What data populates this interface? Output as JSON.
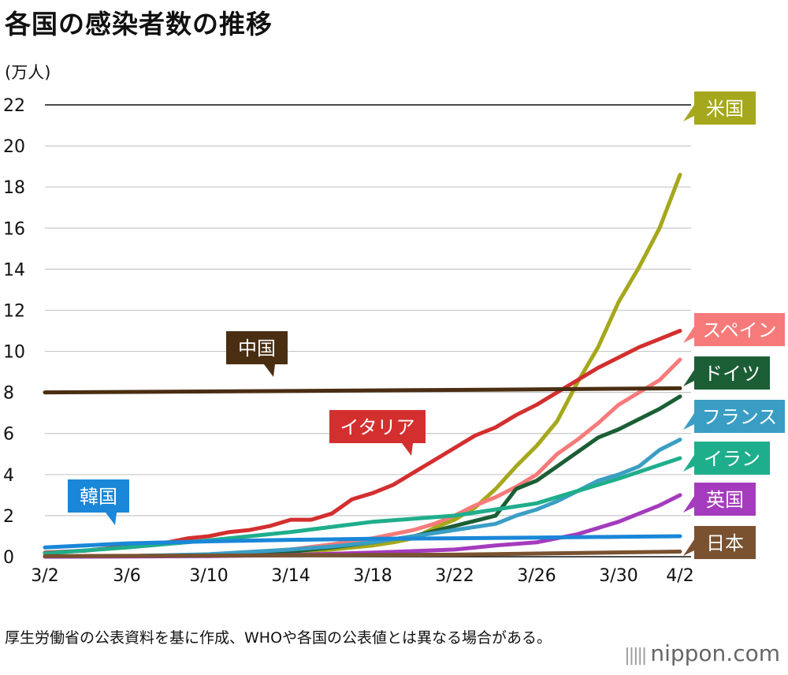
{
  "title": "各国の感染者数の推移",
  "unit": "(万人)",
  "footnote": "厚生労働省の公表資料を基に作成、WHOや各国の公表値とは異なる場合がある。",
  "logo": "nippon.com",
  "chart_data": {
    "type": "line",
    "x_tick_labels": [
      "3/2",
      "3/6",
      "3/10",
      "3/14",
      "3/18",
      "3/22",
      "3/26",
      "3/30",
      "4/2"
    ],
    "x_tick_days": [
      0,
      4,
      8,
      12,
      16,
      20,
      24,
      28,
      31
    ],
    "ylim": [
      0,
      22
    ],
    "y_ticks": [
      0,
      2,
      4,
      6,
      8,
      10,
      12,
      14,
      16,
      18,
      20,
      22
    ],
    "ylabel": "(万人)",
    "series": [
      {
        "name": "米国",
        "color": "#a5a81c",
        "label_color": "#a5a81c",
        "x": [
          0,
          4,
          8,
          12,
          14,
          16,
          17,
          18,
          19,
          20,
          21,
          22,
          23,
          24,
          25,
          26,
          27,
          28,
          29,
          30,
          31
        ],
        "values": [
          0.01,
          0.02,
          0.06,
          0.2,
          0.35,
          0.55,
          0.7,
          0.9,
          1.4,
          1.8,
          2.4,
          3.3,
          4.4,
          5.4,
          6.6,
          8.5,
          10.2,
          12.4,
          14.1,
          16.0,
          18.6
        ]
      },
      {
        "name": "スペイン",
        "color": "#f77a7a",
        "label_color": "#f77a7a",
        "x": [
          0,
          4,
          8,
          10,
          12,
          14,
          16,
          18,
          19,
          20,
          21,
          22,
          23,
          24,
          25,
          26,
          27,
          28,
          29,
          30,
          31
        ],
        "values": [
          0.01,
          0.03,
          0.1,
          0.2,
          0.35,
          0.6,
          0.9,
          1.3,
          1.6,
          2.0,
          2.5,
          2.9,
          3.4,
          4.0,
          5.0,
          5.7,
          6.5,
          7.4,
          8.0,
          8.6,
          9.6
        ]
      },
      {
        "name": "イタリア",
        "color": "#d32f2f",
        "label_color": "#d32f2f",
        "x": [
          0,
          2,
          4,
          5,
          6,
          7,
          8,
          9,
          10,
          11,
          12,
          13,
          14,
          15,
          16,
          17,
          18,
          19,
          20,
          21,
          22,
          23,
          24,
          25,
          26,
          27,
          28,
          29,
          30,
          31
        ],
        "values": [
          0.2,
          0.3,
          0.5,
          0.6,
          0.7,
          0.9,
          1.0,
          1.2,
          1.3,
          1.5,
          1.8,
          1.8,
          2.1,
          2.8,
          3.1,
          3.5,
          4.1,
          4.7,
          5.3,
          5.9,
          6.3,
          6.9,
          7.4,
          8.0,
          8.6,
          9.2,
          9.7,
          10.2,
          10.6,
          11.0
        ]
      },
      {
        "name": "ドイツ",
        "color": "#1b5e35",
        "label_color": "#1b5e35",
        "x": [
          0,
          4,
          8,
          12,
          14,
          16,
          18,
          20,
          22,
          23,
          24,
          25,
          26,
          27,
          28,
          29,
          30,
          31
        ],
        "values": [
          0.01,
          0.02,
          0.08,
          0.25,
          0.45,
          0.7,
          1.0,
          1.5,
          2.0,
          3.3,
          3.7,
          4.4,
          5.1,
          5.8,
          6.2,
          6.7,
          7.2,
          7.8
        ]
      },
      {
        "name": "フランス",
        "color": "#3a9ec4",
        "label_color": "#3a9ec4",
        "x": [
          0,
          4,
          8,
          12,
          14,
          16,
          18,
          20,
          22,
          23,
          24,
          25,
          26,
          27,
          28,
          29,
          30,
          31
        ],
        "values": [
          0.01,
          0.03,
          0.12,
          0.35,
          0.5,
          0.7,
          1.0,
          1.3,
          1.6,
          2.0,
          2.3,
          2.7,
          3.2,
          3.7,
          4.0,
          4.4,
          5.2,
          5.7
        ]
      },
      {
        "name": "イラン",
        "color": "#1fae8c",
        "label_color": "#1fae8c",
        "x": [
          0,
          4,
          8,
          12,
          16,
          20,
          24,
          28,
          31
        ],
        "values": [
          0.16,
          0.45,
          0.8,
          1.2,
          1.7,
          2.0,
          2.6,
          3.8,
          4.8
        ]
      },
      {
        "name": "英国",
        "color": "#a43bbd",
        "label_color": "#a43bbd",
        "x": [
          0,
          4,
          8,
          12,
          16,
          20,
          22,
          24,
          26,
          28,
          30,
          31
        ],
        "values": [
          0.0,
          0.01,
          0.03,
          0.08,
          0.2,
          0.35,
          0.55,
          0.7,
          1.1,
          1.7,
          2.5,
          3.0
        ]
      },
      {
        "name": "日本",
        "color": "#7a5230",
        "label_color": "#7a5230",
        "x": [
          0,
          10,
          20,
          31
        ],
        "values": [
          0.03,
          0.06,
          0.1,
          0.25
        ]
      },
      {
        "name": "中国",
        "color": "#4a2e12",
        "label_color": "#4a2e12",
        "x": [
          0,
          10,
          20,
          31
        ],
        "values": [
          8.0,
          8.06,
          8.12,
          8.2
        ]
      },
      {
        "name": "韓国",
        "color": "#1a87d8",
        "label_color": "#1a87d8",
        "x": [
          0,
          4,
          8,
          12,
          16,
          20,
          24,
          28,
          31
        ],
        "values": [
          0.45,
          0.65,
          0.75,
          0.82,
          0.87,
          0.9,
          0.93,
          0.97,
          1.0
        ]
      }
    ]
  }
}
